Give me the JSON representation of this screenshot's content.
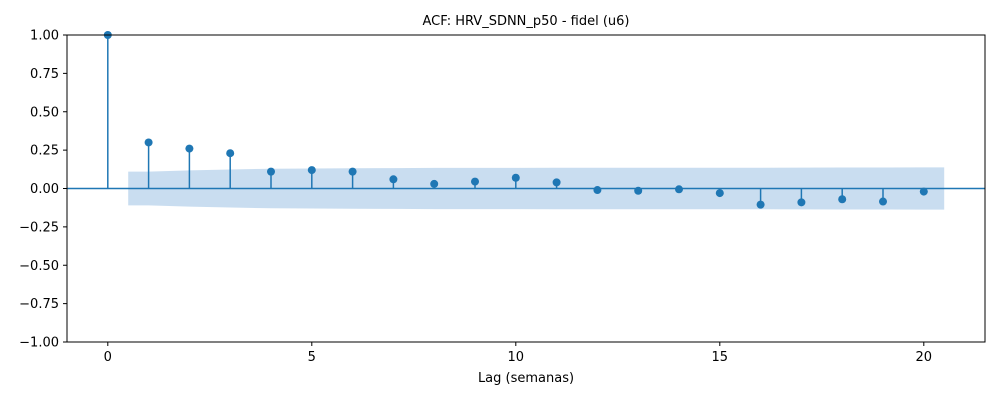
{
  "chart_data": {
    "type": "stem",
    "title": "ACF: HRV_SDNN_p50 - fidel (u6)",
    "xlabel": "Lag (semanas)",
    "ylabel": "",
    "xlim": [
      -1,
      21.5
    ],
    "ylim": [
      -1.0,
      1.0
    ],
    "xticks": [
      0,
      5,
      10,
      15,
      20
    ],
    "yticks": [
      -1.0,
      -0.75,
      -0.5,
      -0.25,
      0.0,
      0.25,
      0.5,
      0.75,
      1.0
    ],
    "xtick_labels": [
      "0",
      "5",
      "10",
      "15",
      "20"
    ],
    "ytick_labels": [
      "−1.00",
      "−0.75",
      "−0.50",
      "−0.25",
      "0.00",
      "0.25",
      "0.50",
      "0.75",
      "1.00"
    ],
    "lags": [
      0,
      1,
      2,
      3,
      4,
      5,
      6,
      7,
      8,
      9,
      10,
      11,
      12,
      13,
      14,
      15,
      16,
      17,
      18,
      19,
      20
    ],
    "acf": [
      1.0,
      0.3,
      0.26,
      0.23,
      0.11,
      0.12,
      0.11,
      0.06,
      0.03,
      0.045,
      0.07,
      0.04,
      -0.01,
      -0.015,
      -0.005,
      -0.03,
      -0.105,
      -0.09,
      -0.07,
      -0.085,
      -0.02
    ],
    "confidence_band": {
      "x": [
        0.5,
        1,
        2,
        3,
        4,
        5,
        6,
        7,
        8,
        9,
        10,
        11,
        12,
        13,
        14,
        15,
        16,
        17,
        18,
        19,
        20,
        20.5
      ],
      "upper": [
        0.11,
        0.11,
        0.118,
        0.124,
        0.129,
        0.13,
        0.132,
        0.133,
        0.134,
        0.134,
        0.134,
        0.135,
        0.135,
        0.135,
        0.135,
        0.135,
        0.135,
        0.136,
        0.137,
        0.137,
        0.138,
        0.138
      ]
    },
    "grid": false,
    "colors": {
      "stem": "#1f77b4",
      "marker": "#1f77b4",
      "band": "#c6dbef",
      "zero_line": "#1f77b4"
    }
  }
}
